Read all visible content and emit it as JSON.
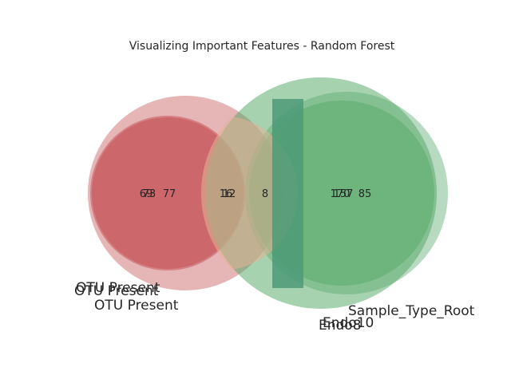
{
  "title": "Visualizing Important Features - Random Forest",
  "colors": {
    "red": "#c44e52",
    "green": "#55a868",
    "overlap_red_green": "#d9a486",
    "rect": "#4c9a78",
    "text": "#262626"
  },
  "set_labels": [
    {
      "text": "OTU Present",
      "color": "red"
    },
    {
      "text": "OTU Present",
      "color": "red"
    },
    {
      "text": "OTU Present",
      "color": "red"
    },
    {
      "text": "Endo10",
      "color": "green"
    },
    {
      "text": "Endo8",
      "color": "green"
    },
    {
      "text": "Sample_Type_Root",
      "color": "green"
    }
  ],
  "counts": [
    {
      "text": "69"
    },
    {
      "text": "73"
    },
    {
      "text": "77"
    },
    {
      "text": "16"
    },
    {
      "text": "12"
    },
    {
      "text": "8"
    },
    {
      "text": "170"
    },
    {
      "text": "157"
    },
    {
      "text": "85"
    }
  ]
}
